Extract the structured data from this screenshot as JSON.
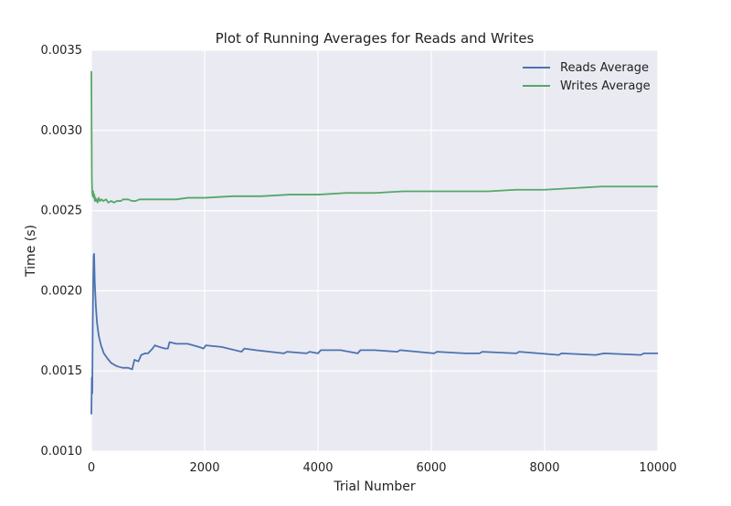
{
  "chart_data": {
    "type": "line",
    "title": "Plot of Running Averages for Reads and Writes",
    "xlabel": "Trial Number",
    "ylabel": "Time (s)",
    "xlim": [
      0,
      10000
    ],
    "ylim": [
      0.001,
      0.0035
    ],
    "x_ticks": [
      "0",
      "2000",
      "4000",
      "6000",
      "8000",
      "10000"
    ],
    "y_ticks": [
      "0.0010",
      "0.0015",
      "0.0020",
      "0.0025",
      "0.0030",
      "0.0035"
    ],
    "grid": true,
    "legend_position": "top-right",
    "style": {
      "background": "#eaeaf2",
      "grid": "#ffffff"
    },
    "series": [
      {
        "name": "Reads Average",
        "color": "#4c72b0",
        "points": [
          [
            0,
            0.00123
          ],
          [
            8,
            0.00146
          ],
          [
            16,
            0.00136
          ],
          [
            24,
            0.0018
          ],
          [
            32,
            0.00205
          ],
          [
            40,
            0.00222
          ],
          [
            48,
            0.00223
          ],
          [
            60,
            0.00205
          ],
          [
            80,
            0.0019
          ],
          [
            100,
            0.0018
          ],
          [
            130,
            0.00172
          ],
          [
            170,
            0.00166
          ],
          [
            220,
            0.00161
          ],
          [
            280,
            0.00158
          ],
          [
            350,
            0.00155
          ],
          [
            450,
            0.00153
          ],
          [
            550,
            0.00152
          ],
          [
            650,
            0.00152
          ],
          [
            720,
            0.00151
          ],
          [
            760,
            0.00157
          ],
          [
            830,
            0.00156
          ],
          [
            880,
            0.0016
          ],
          [
            950,
            0.00161
          ],
          [
            1000,
            0.00161
          ],
          [
            1080,
            0.00164
          ],
          [
            1120,
            0.00166
          ],
          [
            1200,
            0.00165
          ],
          [
            1300,
            0.00164
          ],
          [
            1350,
            0.00164
          ],
          [
            1380,
            0.00168
          ],
          [
            1500,
            0.00167
          ],
          [
            1700,
            0.00167
          ],
          [
            1900,
            0.00165
          ],
          [
            1980,
            0.00164
          ],
          [
            2020,
            0.00166
          ],
          [
            2300,
            0.00165
          ],
          [
            2650,
            0.00162
          ],
          [
            2700,
            0.00164
          ],
          [
            2900,
            0.00163
          ],
          [
            3400,
            0.00161
          ],
          [
            3450,
            0.00162
          ],
          [
            3800,
            0.00161
          ],
          [
            3850,
            0.00162
          ],
          [
            4000,
            0.00161
          ],
          [
            4050,
            0.00163
          ],
          [
            4400,
            0.00163
          ],
          [
            4700,
            0.00161
          ],
          [
            4750,
            0.00163
          ],
          [
            5000,
            0.00163
          ],
          [
            5400,
            0.00162
          ],
          [
            5450,
            0.00163
          ],
          [
            6050,
            0.00161
          ],
          [
            6100,
            0.00162
          ],
          [
            6600,
            0.00161
          ],
          [
            6850,
            0.00161
          ],
          [
            6900,
            0.00162
          ],
          [
            7500,
            0.00161
          ],
          [
            7550,
            0.00162
          ],
          [
            8250,
            0.0016
          ],
          [
            8300,
            0.00161
          ],
          [
            8900,
            0.0016
          ],
          [
            9050,
            0.00161
          ],
          [
            9700,
            0.0016
          ],
          [
            9750,
            0.00161
          ],
          [
            10000,
            0.00161
          ]
        ]
      },
      {
        "name": "Writes Average",
        "color": "#55a868",
        "points": [
          [
            0,
            0.00337
          ],
          [
            4,
            0.003
          ],
          [
            8,
            0.0027
          ],
          [
            14,
            0.00262
          ],
          [
            22,
            0.00259
          ],
          [
            32,
            0.00262
          ],
          [
            42,
            0.00258
          ],
          [
            52,
            0.0026
          ],
          [
            62,
            0.00256
          ],
          [
            72,
            0.00258
          ],
          [
            84,
            0.00256
          ],
          [
            96,
            0.00257
          ],
          [
            110,
            0.00255
          ],
          [
            130,
            0.00258
          ],
          [
            150,
            0.00256
          ],
          [
            180,
            0.00257
          ],
          [
            210,
            0.00256
          ],
          [
            260,
            0.00257
          ],
          [
            300,
            0.00255
          ],
          [
            350,
            0.00256
          ],
          [
            400,
            0.00255
          ],
          [
            450,
            0.00256
          ],
          [
            520,
            0.00256
          ],
          [
            560,
            0.00257
          ],
          [
            650,
            0.00257
          ],
          [
            720,
            0.00256
          ],
          [
            780,
            0.00256
          ],
          [
            850,
            0.00257
          ],
          [
            1000,
            0.00257
          ],
          [
            1200,
            0.00257
          ],
          [
            1500,
            0.00257
          ],
          [
            1700,
            0.00258
          ],
          [
            2000,
            0.00258
          ],
          [
            2500,
            0.00259
          ],
          [
            3000,
            0.00259
          ],
          [
            3500,
            0.0026
          ],
          [
            4000,
            0.0026
          ],
          [
            4500,
            0.00261
          ],
          [
            5000,
            0.00261
          ],
          [
            5500,
            0.00262
          ],
          [
            6000,
            0.00262
          ],
          [
            6500,
            0.00262
          ],
          [
            7000,
            0.00262
          ],
          [
            7500,
            0.00263
          ],
          [
            8000,
            0.00263
          ],
          [
            8500,
            0.00264
          ],
          [
            9000,
            0.00265
          ],
          [
            9500,
            0.00265
          ],
          [
            10000,
            0.00265
          ]
        ]
      }
    ]
  }
}
